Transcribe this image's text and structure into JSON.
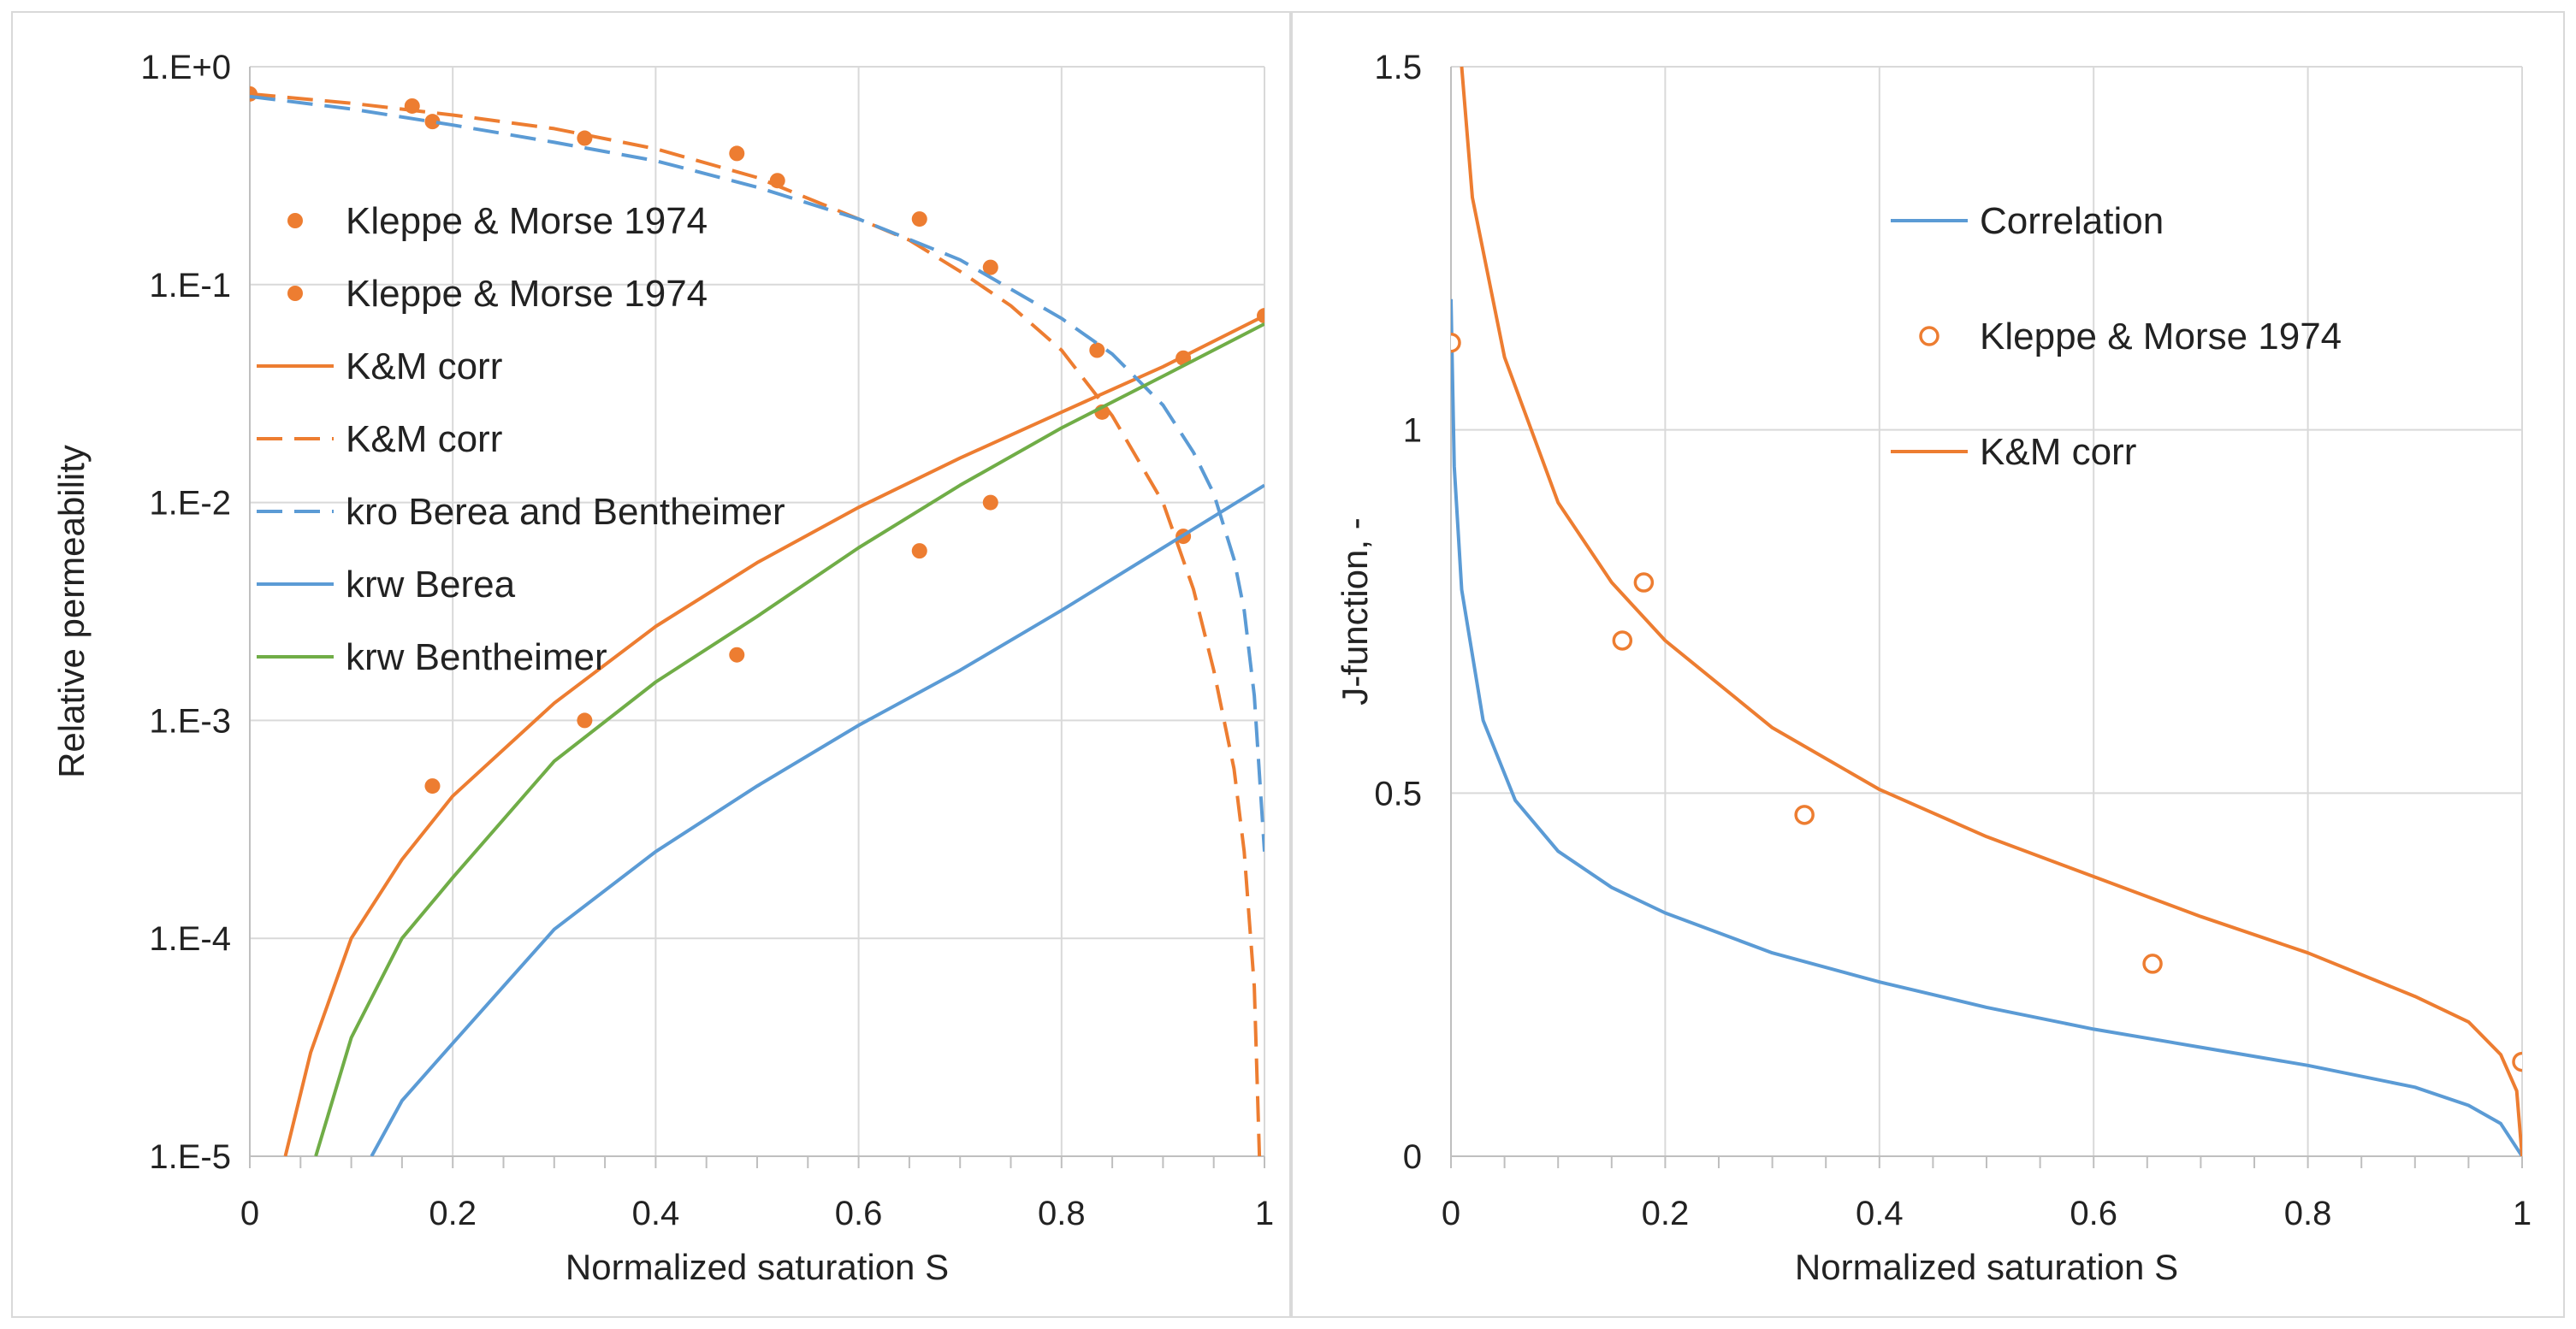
{
  "colors": {
    "orange": "#ed7d31",
    "blue": "#5b9bd5",
    "green": "#70ad47",
    "grid": "#d9d9d9",
    "text": "#222222"
  },
  "chart_data": [
    {
      "type": "line",
      "title": "",
      "xlabel": "Normalized saturation S",
      "ylabel": "Relative permeability",
      "xlim": [
        0,
        1
      ],
      "ylim": [
        1e-05,
        1
      ],
      "yscale": "log",
      "x_ticks": [
        0,
        0.2,
        0.4,
        0.6,
        0.8,
        1
      ],
      "x_tick_labels": [
        "0",
        "0.2",
        "0.4",
        "0.6",
        "0.8",
        "1"
      ],
      "y_ticks": [
        1e-05,
        0.0001,
        0.001,
        0.01,
        0.1,
        1
      ],
      "y_tick_labels": [
        "1.E-5",
        "1.E-4",
        "1.E-3",
        "1.E-2",
        "1.E-1",
        "1.E+0"
      ],
      "grid": true,
      "legend_position": "top-left",
      "series": [
        {
          "name": "Kleppe & Morse 1974",
          "kind": "scatter",
          "color": "#ed7d31",
          "x": [
            0.0,
            0.16,
            0.18,
            0.33,
            0.48,
            0.52,
            0.66,
            0.73,
            0.835,
            0.92
          ],
          "y": [
            0.75,
            0.66,
            0.56,
            0.47,
            0.4,
            0.3,
            0.2,
            0.12,
            0.05,
            0.007
          ]
        },
        {
          "name": "Kleppe & Morse 1974",
          "kind": "scatter",
          "color": "#ed7d31",
          "x": [
            0.18,
            0.33,
            0.48,
            0.66,
            0.73,
            0.84,
            0.92,
            1.0
          ],
          "y": [
            0.0005,
            0.001,
            0.002,
            0.006,
            0.01,
            0.026,
            0.046,
            0.072
          ]
        },
        {
          "name": "K&M corr",
          "kind": "line",
          "style": "solid",
          "color": "#ed7d31",
          "x": [
            0.035,
            0.06,
            0.1,
            0.15,
            0.2,
            0.3,
            0.4,
            0.5,
            0.6,
            0.7,
            0.8,
            0.9,
            1.0
          ],
          "y": [
            1e-05,
            3e-05,
            0.0001,
            0.00023,
            0.00045,
            0.0012,
            0.0027,
            0.0053,
            0.0095,
            0.016,
            0.026,
            0.042,
            0.072
          ]
        },
        {
          "name": "K&M corr",
          "kind": "line",
          "style": "dashed",
          "color": "#ed7d31",
          "x": [
            0.0,
            0.1,
            0.2,
            0.3,
            0.4,
            0.5,
            0.6,
            0.65,
            0.7,
            0.75,
            0.8,
            0.85,
            0.9,
            0.93,
            0.95,
            0.97,
            0.98,
            0.99,
            0.995
          ],
          "y": [
            0.75,
            0.68,
            0.6,
            0.52,
            0.42,
            0.31,
            0.2,
            0.16,
            0.115,
            0.08,
            0.05,
            0.025,
            0.01,
            0.004,
            0.0017,
            0.0006,
            0.00025,
            6e-05,
            1e-05
          ]
        },
        {
          "name": "kro Berea and Bentheimer",
          "kind": "line",
          "style": "dashed",
          "color": "#5b9bd5",
          "x": [
            0.0,
            0.1,
            0.2,
            0.3,
            0.4,
            0.5,
            0.6,
            0.7,
            0.8,
            0.85,
            0.9,
            0.93,
            0.95,
            0.97,
            0.98,
            0.99,
            1.0
          ],
          "y": [
            0.73,
            0.64,
            0.54,
            0.45,
            0.37,
            0.28,
            0.2,
            0.13,
            0.07,
            0.048,
            0.028,
            0.017,
            0.011,
            0.0055,
            0.0032,
            0.0013,
            0.00025
          ]
        },
        {
          "name": "krw Berea",
          "kind": "line",
          "style": "solid",
          "color": "#5b9bd5",
          "x": [
            0.12,
            0.15,
            0.2,
            0.3,
            0.4,
            0.5,
            0.6,
            0.7,
            0.8,
            0.9,
            1.0
          ],
          "y": [
            1e-05,
            1.8e-05,
            3.3e-05,
            0.00011,
            0.00025,
            0.0005,
            0.00095,
            0.0017,
            0.0032,
            0.0062,
            0.012
          ]
        },
        {
          "name": "krw Bentheimer",
          "kind": "line",
          "style": "solid",
          "color": "#70ad47",
          "x": [
            0.065,
            0.1,
            0.15,
            0.2,
            0.3,
            0.4,
            0.5,
            0.6,
            0.7,
            0.8,
            0.9,
            1.0
          ],
          "y": [
            1e-05,
            3.5e-05,
            0.0001,
            0.00019,
            0.00065,
            0.0015,
            0.003,
            0.0062,
            0.012,
            0.022,
            0.038,
            0.066
          ]
        }
      ]
    },
    {
      "type": "line",
      "title": "",
      "xlabel": "Normalized saturation S",
      "ylabel": "J-function, -",
      "xlim": [
        0,
        1
      ],
      "ylim": [
        0,
        1.5
      ],
      "yscale": "linear",
      "x_ticks": [
        0,
        0.2,
        0.4,
        0.6,
        0.8,
        1
      ],
      "x_tick_labels": [
        "0",
        "0.2",
        "0.4",
        "0.6",
        "0.8",
        "1"
      ],
      "y_ticks": [
        0,
        0.5,
        1,
        1.5
      ],
      "y_tick_labels": [
        "0",
        "0.5",
        "1",
        "1.5"
      ],
      "grid": true,
      "legend_position": "top-right",
      "series": [
        {
          "name": "Correlation",
          "kind": "line",
          "style": "solid",
          "color": "#5b9bd5",
          "x": [
            0.0,
            0.003,
            0.01,
            0.03,
            0.06,
            0.1,
            0.15,
            0.2,
            0.3,
            0.4,
            0.5,
            0.6,
            0.7,
            0.8,
            0.9,
            0.95,
            0.98,
            1.0
          ],
          "y": [
            1.18,
            0.95,
            0.78,
            0.6,
            0.49,
            0.42,
            0.37,
            0.335,
            0.28,
            0.24,
            0.205,
            0.175,
            0.15,
            0.125,
            0.095,
            0.07,
            0.045,
            0.0
          ]
        },
        {
          "name": "Kleppe & Morse 1974",
          "kind": "scatter",
          "marker": "open-circle",
          "color": "#ed7d31",
          "x": [
            0.0,
            0.16,
            0.18,
            0.33,
            0.655,
            1.0
          ],
          "y": [
            1.12,
            0.71,
            0.79,
            0.47,
            0.265,
            0.13
          ]
        },
        {
          "name": "K&M corr",
          "kind": "line",
          "style": "solid",
          "color": "#ed7d31",
          "x": [
            0.01,
            0.02,
            0.05,
            0.1,
            0.15,
            0.2,
            0.3,
            0.4,
            0.5,
            0.6,
            0.7,
            0.8,
            0.9,
            0.95,
            0.98,
            0.995,
            1.0
          ],
          "y": [
            1.5,
            1.32,
            1.1,
            0.9,
            0.79,
            0.71,
            0.59,
            0.505,
            0.44,
            0.385,
            0.33,
            0.28,
            0.22,
            0.185,
            0.14,
            0.09,
            0.0
          ]
        }
      ]
    }
  ]
}
